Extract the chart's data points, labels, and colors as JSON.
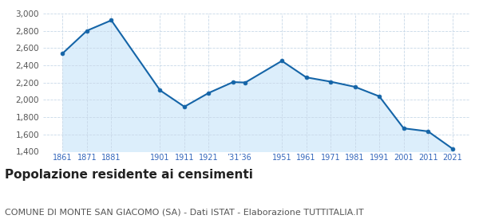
{
  "years": [
    1861,
    1871,
    1881,
    1901,
    1911,
    1921,
    1931,
    1936,
    1951,
    1961,
    1971,
    1981,
    1991,
    2001,
    2011,
    2021
  ],
  "population": [
    2537,
    2800,
    2920,
    2110,
    1920,
    2080,
    2205,
    2200,
    2450,
    2260,
    2210,
    2150,
    2040,
    1670,
    1635,
    1435
  ],
  "tick_positions": [
    1861,
    1871,
    1881,
    1901,
    1911,
    1921,
    1933.5,
    1951,
    1961,
    1971,
    1981,
    1991,
    2001,
    2011,
    2021
  ],
  "tick_labels": [
    "1861",
    "1871",
    "1881",
    "1901",
    "1911",
    "1921",
    "’31’36",
    "1951",
    "1961",
    "1971",
    "1981",
    "1991",
    "2001",
    "2011",
    "2021"
  ],
  "line_color": "#1565a8",
  "fill_color": "#dceefb",
  "marker_color": "#1565a8",
  "background_color": "#ffffff",
  "grid_color": "#c8d8e8",
  "ylim": [
    1400,
    3000
  ],
  "yticks": [
    1400,
    1600,
    1800,
    2000,
    2200,
    2400,
    2600,
    2800,
    3000
  ],
  "xlim_min": 1853,
  "xlim_max": 2028,
  "title": "Popolazione residente ai censimenti",
  "subtitle": "COMUNE DI MONTE SAN GIACOMO (SA) - Dati ISTAT - Elaborazione TUTTITALIA.IT",
  "title_fontsize": 11,
  "subtitle_fontsize": 8,
  "title_color": "#222222",
  "subtitle_color": "#555555",
  "tick_color": "#3366bb",
  "ytick_color": "#555555",
  "ytick_fontsize": 7.5,
  "xtick_fontsize": 7
}
